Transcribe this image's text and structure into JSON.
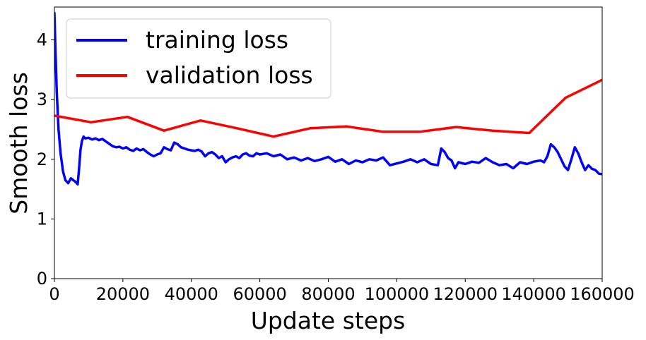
{
  "chart_data": {
    "type": "line",
    "xlabel": "Update steps",
    "ylabel": "Smooth loss",
    "xlim": [
      0,
      160000
    ],
    "ylim": [
      0,
      4.55
    ],
    "xticks": [
      0,
      20000,
      40000,
      60000,
      80000,
      100000,
      120000,
      140000,
      160000
    ],
    "xtick_labels": [
      "0",
      "20000",
      "40000",
      "60000",
      "80000",
      "100000",
      "120000",
      "140000",
      "160000"
    ],
    "yticks": [
      0,
      1,
      2,
      3,
      4
    ],
    "ytick_labels": [
      "0",
      "1",
      "2",
      "3",
      "4"
    ],
    "grid": false,
    "legend_position": "top-left",
    "series": [
      {
        "name": "training loss",
        "color": "#0000ff",
        "x": [
          0,
          300,
          700,
          1200,
          1800,
          2500,
          3200,
          4000,
          4800,
          5500,
          6200,
          6800,
          7200,
          7600,
          8000,
          8500,
          9000,
          10000,
          11000,
          12000,
          13000,
          14000,
          15000,
          16000,
          17000,
          18000,
          19000,
          20000,
          21000,
          22000,
          23000,
          24000,
          25000,
          26000,
          27000,
          28000,
          29000,
          30000,
          31000,
          32000,
          33000,
          34000,
          35000,
          36000,
          37000,
          38000,
          39000,
          40000,
          41000,
          42000,
          43000,
          44000,
          45000,
          46000,
          47000,
          48000,
          49000,
          50000,
          51000,
          52000,
          53000,
          54000,
          55000,
          56000,
          57000,
          58000,
          59000,
          60000,
          62000,
          64000,
          66000,
          68000,
          70000,
          72000,
          74000,
          76000,
          78000,
          80000,
          82000,
          84000,
          86000,
          88000,
          90000,
          92000,
          94000,
          96000,
          98000,
          100000,
          102000,
          104000,
          106000,
          108000,
          110000,
          112000,
          113000,
          114000,
          115000,
          116000,
          117000,
          118000,
          120000,
          122000,
          124000,
          126000,
          128000,
          130000,
          132000,
          134000,
          136000,
          138000,
          140000,
          142000,
          143000,
          144000,
          145000,
          146000,
          147000,
          148000,
          149000,
          150000,
          151000,
          152000,
          153000,
          154000,
          155000,
          156000,
          157000,
          158000,
          159000,
          160000
        ],
        "y": [
          4.45,
          3.8,
          3.1,
          2.5,
          2.1,
          1.8,
          1.65,
          1.6,
          1.68,
          1.65,
          1.62,
          1.58,
          1.85,
          2.15,
          2.3,
          2.38,
          2.35,
          2.36,
          2.33,
          2.35,
          2.32,
          2.34,
          2.3,
          2.26,
          2.22,
          2.2,
          2.21,
          2.18,
          2.2,
          2.16,
          2.14,
          2.18,
          2.15,
          2.17,
          2.12,
          2.08,
          2.05,
          2.08,
          2.1,
          2.2,
          2.17,
          2.15,
          2.28,
          2.25,
          2.2,
          2.18,
          2.16,
          2.15,
          2.14,
          2.16,
          2.13,
          2.05,
          2.1,
          2.12,
          2.08,
          2.02,
          2.05,
          1.95,
          2.0,
          2.03,
          2.05,
          2.02,
          2.08,
          2.1,
          2.06,
          2.05,
          2.1,
          2.08,
          2.1,
          2.05,
          2.08,
          2.0,
          2.03,
          1.98,
          2.02,
          1.97,
          2.0,
          2.04,
          1.96,
          2.0,
          1.92,
          1.98,
          1.95,
          2.0,
          1.98,
          2.03,
          1.9,
          1.93,
          1.96,
          2.0,
          1.95,
          2.0,
          1.92,
          1.9,
          2.18,
          2.12,
          2.02,
          1.98,
          1.85,
          1.95,
          1.92,
          1.96,
          1.94,
          2.02,
          1.95,
          1.9,
          1.92,
          1.85,
          1.95,
          1.92,
          1.96,
          1.98,
          1.95,
          2.05,
          2.25,
          2.2,
          2.12,
          2.0,
          1.88,
          1.82,
          2.0,
          2.2,
          2.1,
          1.95,
          1.82,
          1.9,
          1.84,
          1.82,
          1.76,
          1.75
        ]
      },
      {
        "name": "validation loss",
        "color": "#ff0000",
        "x": [
          0,
          10700,
          21300,
          32000,
          42700,
          53300,
          64000,
          74700,
          85300,
          96000,
          106700,
          117300,
          128000,
          138700,
          149300,
          160000
        ],
        "y": [
          2.73,
          2.62,
          2.71,
          2.48,
          2.65,
          2.52,
          2.38,
          2.52,
          2.55,
          2.46,
          2.46,
          2.54,
          2.48,
          2.44,
          3.03,
          3.33
        ]
      }
    ]
  }
}
